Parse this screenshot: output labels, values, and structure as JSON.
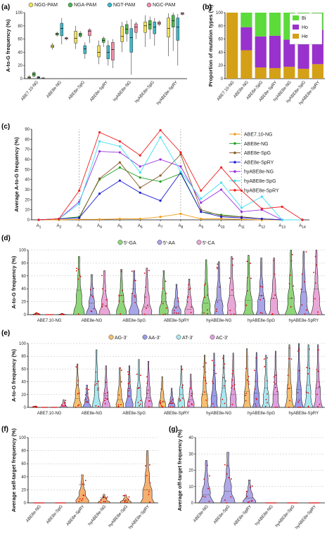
{
  "chart_data": [
    {
      "panel": "(a)",
      "type": "boxplot",
      "ylabel": "A-to-G frequency (%)",
      "ylim": [
        0,
        100
      ],
      "yticks": [
        0,
        20,
        40,
        60,
        80,
        100
      ],
      "categories": [
        "ABE7.10-NG",
        "ABE8e-NG",
        "ABE8e-SpG",
        "ABE8e-SpRY",
        "hyABE8e-NG",
        "hyABE8e-SpG",
        "hyABE8e-SpRY"
      ],
      "series": [
        {
          "name": "NGG-PAM",
          "color": "#F2E15A",
          "boxes": [
            [
              0,
              1,
              2,
              3,
              5
            ],
            [
              44,
              47,
              49,
              51,
              54
            ],
            [
              45,
              54,
              61,
              72,
              80
            ],
            [
              22,
              33,
              40,
              50,
              58
            ],
            [
              40,
              56,
              64,
              79,
              86
            ],
            [
              48,
              70,
              80,
              86,
              96
            ],
            [
              34,
              63,
              76,
              92,
              99
            ]
          ]
        },
        {
          "name": "NGA-PAM",
          "color": "#4CB54C",
          "boxes": [
            [
              2,
              4,
              7,
              9,
              11
            ],
            [
              64,
              66,
              68,
              69,
              71
            ],
            [
              62,
              64,
              67,
              69,
              72
            ],
            [
              48,
              55,
              58,
              61,
              64
            ],
            [
              56,
              68,
              75,
              82,
              88
            ],
            [
              60,
              75,
              82,
              88,
              94
            ],
            [
              42,
              78,
              88,
              96,
              100
            ]
          ]
        },
        {
          "name": "NGT-PAM",
          "color": "#3FB7C9",
          "boxes": [
            [
              0,
              1,
              2,
              3,
              4
            ],
            [
              52,
              65,
              76,
              84,
              92
            ],
            [
              30,
              38,
              45,
              50,
              55
            ],
            [
              20,
              30,
              40,
              50,
              58
            ],
            [
              6,
              40,
              62,
              76,
              90
            ],
            [
              50,
              68,
              78,
              86,
              92
            ],
            [
              20,
              58,
              78,
              92,
              98
            ]
          ]
        },
        {
          "name": "NGC-PAM",
          "color": "#F08CA8",
          "boxes": [
            [
              0,
              0,
              1,
              1,
              2
            ],
            [
              58,
              60,
              61,
              62,
              63
            ],
            [
              54,
              65,
              72,
              74,
              76
            ],
            [
              16,
              28,
              44,
              55,
              60
            ],
            [
              60,
              70,
              78,
              83,
              86
            ],
            [
              80,
              82,
              84,
              86,
              88
            ],
            [
              96,
              97,
              99,
              100,
              100
            ]
          ]
        }
      ]
    },
    {
      "panel": "(b)",
      "type": "bar",
      "stacked": true,
      "ylabel": "Proportion of mutation types (%)",
      "ylim": [
        0,
        100
      ],
      "yticks": [
        0,
        20,
        40,
        60,
        80,
        100
      ],
      "categories": [
        "ABE7.10-NG",
        "ABE8e-NG",
        "ABE8e-SpG",
        "ABE8e-SpRY",
        "hyABE8e-NG",
        "hyABE8e-SpG",
        "hyABE8e-SpRY"
      ],
      "legend_position": "top-right",
      "series": [
        {
          "name": "He",
          "color": "#D4A017",
          "values": [
            100,
            43,
            17,
            16,
            18,
            15,
            22
          ]
        },
        {
          "name": "Ho",
          "color": "#9932CC",
          "values": [
            0,
            35,
            47,
            49,
            41,
            50,
            52
          ]
        },
        {
          "name": "Bi",
          "color": "#5CDB3B",
          "values": [
            0,
            22,
            36,
            35,
            41,
            35,
            26
          ]
        }
      ]
    },
    {
      "panel": "(c)",
      "type": "line",
      "ylabel": "Average A-to-G frequency (%)",
      "ylim": [
        0,
        90
      ],
      "yticks": [
        0,
        10,
        20,
        30,
        40,
        50,
        60,
        70,
        80,
        90
      ],
      "x": [
        "A1",
        "A2",
        "A3",
        "A4",
        "A5",
        "A6",
        "A7",
        "A8",
        "A9",
        "A10",
        "A11",
        "A12",
        "A13",
        "A14"
      ],
      "vlines_at": [
        "A3",
        "A8",
        "A11"
      ],
      "legend_position": "right",
      "series": [
        {
          "name": "ABE7.10-NG",
          "color": "#F39C12",
          "values": [
            0,
            0,
            0.5,
            0.5,
            1,
            1,
            3,
            6,
            1,
            1,
            0.5,
            0,
            0,
            0
          ]
        },
        {
          "name": "ABE8e-NG",
          "color": "#22A022",
          "values": [
            0,
            1,
            3,
            40,
            52,
            42,
            38,
            46,
            8,
            5,
            3,
            1,
            0,
            0
          ]
        },
        {
          "name": "ABE8e-SpG",
          "color": "#8B5A2B",
          "values": [
            0,
            1,
            2,
            41,
            57,
            32,
            44,
            65,
            10,
            4,
            3,
            1,
            0,
            0
          ]
        },
        {
          "name": "ABE8e-SpRY",
          "color": "#1F1FD6",
          "values": [
            0,
            1,
            2,
            26,
            39,
            27,
            19,
            47,
            8,
            3,
            2,
            1,
            0,
            0
          ]
        },
        {
          "name": "hyABE8e-NG",
          "color": "#9B30E0",
          "values": [
            0,
            1,
            18,
            68,
            67,
            53,
            60,
            53,
            17,
            30,
            8,
            10,
            0,
            0
          ]
        },
        {
          "name": "hyABE8e-SpG",
          "color": "#3FE0F0",
          "values": [
            0,
            1,
            16,
            78,
            73,
            47,
            82,
            48,
            21,
            37,
            12,
            23,
            0,
            0
          ]
        },
        {
          "name": "hyABE8e-SpRY",
          "color": "#F02020",
          "values": [
            0,
            1,
            29,
            87,
            78,
            64,
            89,
            67,
            29,
            52,
            29,
            11,
            13,
            0
          ]
        }
      ]
    },
    {
      "panel": "(d)",
      "type": "violin",
      "ylabel": "A-to-G frequency (%)",
      "ylim": [
        0,
        100
      ],
      "yticks": [
        0,
        20,
        40,
        60,
        80,
        100
      ],
      "categories": [
        "ABE7.10-NG",
        "ABE8e-NG",
        "ABE8e-SpG",
        "ABE8e-SpRY",
        "hyABE8e-NG",
        "hyABE8e-SpG",
        "hyABE8e-SpRY"
      ],
      "legend_position": "top",
      "series": [
        {
          "name": "5'-GA",
          "color": "#8FD67A",
          "ranges": [
            [
              0,
              3,
              1
            ],
            [
              0,
              90,
              38
            ],
            [
              0,
              70,
              30
            ],
            [
              0,
              68,
              20
            ],
            [
              0,
              85,
              18
            ],
            [
              0,
              92,
              22
            ],
            [
              0,
              100,
              25
            ]
          ]
        },
        {
          "name": "5'-AA",
          "color": "#A9A5E8",
          "ranges": [
            [
              0,
              1,
              0
            ],
            [
              0,
              62,
              18
            ],
            [
              0,
              68,
              40
            ],
            [
              0,
              47,
              12
            ],
            [
              0,
              82,
              22
            ],
            [
              0,
              88,
              30
            ],
            [
              0,
              98,
              35
            ]
          ]
        },
        {
          "name": "5'-CA",
          "color": "#E9A7D7",
          "ranges": [
            [
              0,
              2,
              0
            ],
            [
              0,
              68,
              14
            ],
            [
              0,
              72,
              12
            ],
            [
              0,
              55,
              8
            ],
            [
              0,
              90,
              30
            ],
            [
              0,
              88,
              25
            ],
            [
              0,
              100,
              40
            ]
          ]
        }
      ]
    },
    {
      "panel": "(e)",
      "type": "violin",
      "ylabel": "A-to-G frequency (%)",
      "ylim": [
        0,
        100
      ],
      "yticks": [
        0,
        20,
        40,
        60,
        80,
        100
      ],
      "categories": [
        "ABE7.10-NG",
        "ABE8e-NG",
        "ABE8e-SpG",
        "ABE8e-SpRY",
        "hyABE8e-NG",
        "hyABE8e-SpG",
        "hyABE8e-SpRY"
      ],
      "legend_position": "top",
      "series": [
        {
          "name": "AG-3'",
          "color": "#F5C070",
          "ranges": [
            [
              0,
              2,
              0
            ],
            [
              0,
              68,
              14
            ],
            [
              0,
              62,
              12
            ],
            [
              0,
              48,
              8
            ],
            [
              0,
              82,
              20
            ],
            [
              0,
              92,
              25
            ],
            [
              0,
              98,
              30
            ]
          ]
        },
        {
          "name": "AA-3'",
          "color": "#9C9CE8",
          "ranges": [
            [
              0,
              1,
              0
            ],
            [
              0,
              35,
              10
            ],
            [
              0,
              65,
              18
            ],
            [
              0,
              30,
              6
            ],
            [
              0,
              85,
              18
            ],
            [
              0,
              86,
              22
            ],
            [
              0,
              100,
              28
            ]
          ]
        },
        {
          "name": "AT-3'",
          "color": "#A8E8F0",
          "ranges": [
            [
              0,
              1,
              0
            ],
            [
              0,
              90,
              40
            ],
            [
              0,
              75,
              30
            ],
            [
              0,
              65,
              20
            ],
            [
              0,
              82,
              30
            ],
            [
              0,
              82,
              30
            ],
            [
              0,
              98,
              35
            ]
          ]
        },
        {
          "name": "AC-3'",
          "color": "#E0A0E0",
          "ranges": [
            [
              0,
              12,
              0
            ],
            [
              0,
              65,
              18
            ],
            [
              0,
              72,
              15
            ],
            [
              0,
              52,
              12
            ],
            [
              0,
              85,
              20
            ],
            [
              0,
              88,
              20
            ],
            [
              0,
              98,
              30
            ]
          ]
        }
      ]
    },
    {
      "panel": "(f)",
      "type": "violin",
      "ylabel": "Average self-target frequency (%)",
      "ylim": [
        0,
        100
      ],
      "yticks": [
        0,
        20,
        40,
        60,
        80,
        100
      ],
      "categories": [
        "ABE8e-NG",
        "ABE8e-SpG",
        "ABE8e-SpRY",
        "hyABE8e-NG",
        "hyABE8e-SpG",
        "hyABE8e-SpRY"
      ],
      "series": [
        {
          "name": "",
          "color": "#F5B070",
          "ranges": [
            [
              0,
              0.5,
              0
            ],
            [
              0,
              0.5,
              0
            ],
            [
              0,
              43,
              28
            ],
            [
              0,
              13,
              8
            ],
            [
              0,
              12,
              4
            ],
            [
              0,
              80,
              20
            ]
          ]
        }
      ]
    },
    {
      "panel": "(g)",
      "type": "violin",
      "ylabel": "Average off-target frequency (%)",
      "ylim": [
        0,
        40
      ],
      "yticks": [
        0,
        10,
        20,
        30,
        40
      ],
      "categories": [
        "ABE8e-NG",
        "ABE8e-SpG",
        "ABE8e-SpRY",
        "hyABE8e-NG",
        "hyABE8e-SpG",
        "hyABE8e-SpRY"
      ],
      "series": [
        {
          "name": "",
          "color": "#B0A8E8",
          "ranges": [
            [
              0,
              26,
              5
            ],
            [
              0,
              31,
              7
            ],
            [
              0,
              14,
              3
            ],
            [
              0,
              0.3,
              0
            ],
            [
              0,
              0.3,
              0
            ],
            [
              0,
              0.3,
              0
            ]
          ]
        }
      ]
    }
  ]
}
